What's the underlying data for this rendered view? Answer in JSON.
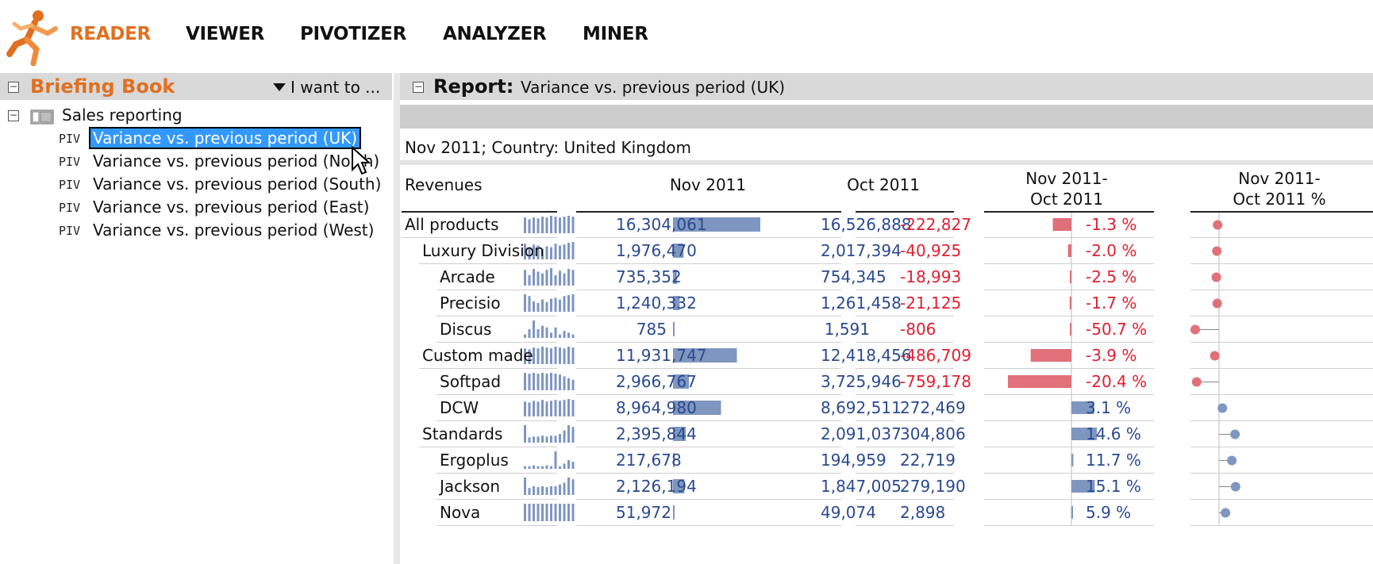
{
  "nav": {
    "items": [
      "READER",
      "VIEWER",
      "PIVOTIZER",
      "ANALYZER",
      "MINER"
    ],
    "active": "READER"
  },
  "colors": {
    "accent": "#e07020",
    "positive_bar": "#7f96c0",
    "negative_bar": "#e0707a",
    "value_text": "#2a4a8f",
    "negative_text": "#e02030",
    "selection": "#3399ff"
  },
  "briefing_book": {
    "title": "Briefing Book",
    "menu_label": "I want to ...",
    "root": "Sales reporting",
    "item_prefix": "PIV",
    "items": [
      "Variance vs. previous period (UK)",
      "Variance vs. previous period (North)",
      "Variance vs. previous period (South)",
      "Variance vs. previous period (East)",
      "Variance vs. previous period (West)"
    ],
    "selected_index": 0
  },
  "report": {
    "title": "Report:",
    "subtitle": "Variance vs. previous period (UK)",
    "filter": "Nov 2011; Country: United Kingdom",
    "headers": {
      "measure": "Revenues",
      "current": "Nov 2011",
      "previous": "Oct 2011",
      "delta_line1": "Nov 2011-",
      "delta_line2": "Oct 2011",
      "pct_line1": "Nov 2011-",
      "pct_line2": "Oct 2011 %"
    },
    "rows": [
      {
        "label": "All products",
        "level": 0,
        "current": "16,304,061",
        "previous": "16,526,888",
        "delta": "-222,827",
        "pct": "-1.3 %",
        "current_value": 16304061,
        "delta_value": -222827,
        "pct_value": -1.3,
        "spark": [
          0.9,
          0.8,
          0.9,
          0.85,
          0.95,
          0.9,
          1,
          0.95,
          0.9,
          0.95,
          1,
          0.95
        ]
      },
      {
        "label": "Luxury Division",
        "level": 1,
        "current": "1,976,470",
        "previous": "2,017,394",
        "delta": "-40,925",
        "pct": "-2.0 %",
        "current_value": 1976470,
        "delta_value": -40925,
        "pct_value": -2.0,
        "spark": [
          0.9,
          0.7,
          0.85,
          0.8,
          0.6,
          0.75,
          0.7,
          0.9,
          0.8,
          0.85,
          0.95,
          1
        ]
      },
      {
        "label": "Arcade",
        "level": 2,
        "current": "735,352",
        "previous": "754,345",
        "delta": "-18,993",
        "pct": "-2.5 %",
        "current_value": 735352,
        "delta_value": -18993,
        "pct_value": -2.5,
        "spark": [
          0.9,
          0.6,
          0.95,
          0.8,
          0.7,
          0.9,
          1,
          0.6,
          0.85,
          0.7,
          0.95,
          0.9
        ]
      },
      {
        "label": "Precisio",
        "level": 2,
        "current": "1,240,332",
        "previous": "1,261,458",
        "delta": "-21,125",
        "pct": "-1.7 %",
        "current_value": 1240332,
        "delta_value": -21125,
        "pct_value": -1.7,
        "spark": [
          1,
          0.9,
          0.6,
          0.5,
          0.7,
          0.55,
          0.75,
          0.8,
          0.7,
          0.9,
          0.95,
          1
        ]
      },
      {
        "label": "Discus",
        "level": 2,
        "current": "785",
        "previous": "1,591",
        "delta": "-806",
        "pct": "-50.7 %",
        "current_value": 785,
        "delta_value": -806,
        "pct_value": -50.7,
        "spark": [
          0.2,
          0.5,
          1,
          0.5,
          0.7,
          0.6,
          0.3,
          0.6,
          0.2,
          0.4,
          0.3,
          0.2
        ]
      },
      {
        "label": "Custom made",
        "level": 1,
        "current": "11,931,747",
        "previous": "12,418,456",
        "delta": "-486,709",
        "pct": "-3.9 %",
        "current_value": 11931747,
        "delta_value": -486709,
        "pct_value": -3.9,
        "spark": [
          0.9,
          0.85,
          0.95,
          0.9,
          1,
          0.95,
          0.9,
          1,
          0.95,
          0.9,
          1,
          0.95
        ]
      },
      {
        "label": "Softpad",
        "level": 2,
        "current": "2,966,767",
        "previous": "3,725,946",
        "delta": "-759,178",
        "pct": "-20.4 %",
        "current_value": 2966767,
        "delta_value": -759178,
        "pct_value": -20.4,
        "spark": [
          1,
          0.95,
          1,
          0.95,
          1,
          0.95,
          1,
          0.95,
          0.9,
          0.8,
          0.7,
          0.6
        ]
      },
      {
        "label": "DCW",
        "level": 2,
        "current": "8,964,980",
        "previous": "8,692,511",
        "delta": "272,469",
        "pct": "3.1 %",
        "current_value": 8964980,
        "delta_value": 272469,
        "pct_value": 3.1,
        "spark": [
          0.85,
          0.8,
          0.9,
          0.85,
          0.95,
          0.85,
          0.9,
          0.95,
          0.9,
          0.95,
          1,
          0.95
        ]
      },
      {
        "label": "Standards",
        "level": 1,
        "current": "2,395,844",
        "previous": "2,091,037",
        "delta": "304,806",
        "pct": "14.6 %",
        "current_value": 2395844,
        "delta_value": 304806,
        "pct_value": 14.6,
        "spark": [
          1,
          0.3,
          0.35,
          0.35,
          0.4,
          0.35,
          0.4,
          0.4,
          0.5,
          0.7,
          1,
          0.9
        ]
      },
      {
        "label": "Ergoplus",
        "level": 2,
        "current": "217,678",
        "previous": "194,959",
        "delta": "22,719",
        "pct": "11.7 %",
        "current_value": 217678,
        "delta_value": 22719,
        "pct_value": 11.7,
        "spark": [
          0.15,
          0.15,
          0.2,
          0.15,
          0.15,
          0.2,
          0.15,
          1,
          0.15,
          0.3,
          0.5,
          0.4
        ]
      },
      {
        "label": "Jackson",
        "level": 2,
        "current": "2,126,194",
        "previous": "1,847,005",
        "delta": "279,190",
        "pct": "15.1 %",
        "current_value": 2126194,
        "delta_value": 279190,
        "pct_value": 15.1,
        "spark": [
          1,
          0.4,
          0.5,
          0.45,
          0.5,
          0.45,
          0.5,
          0.5,
          0.6,
          0.7,
          1,
          0.9
        ]
      },
      {
        "label": "Nova",
        "level": 2,
        "current": "51,972",
        "previous": "49,074",
        "delta": "2,898",
        "pct": "5.9 %",
        "current_value": 51972,
        "delta_value": 2898,
        "pct_value": 5.9,
        "spark": [
          1,
          1,
          1,
          1,
          1,
          1,
          1,
          1,
          1,
          1,
          1,
          1
        ]
      }
    ]
  }
}
